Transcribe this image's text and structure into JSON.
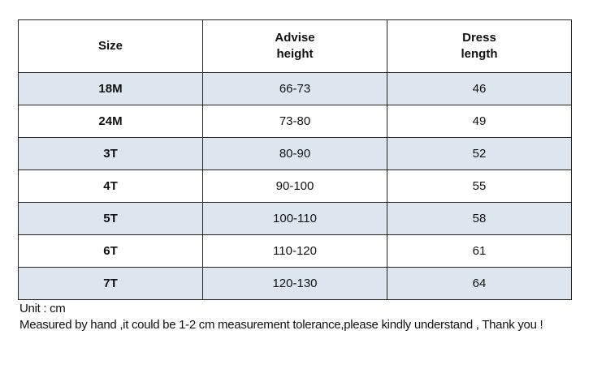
{
  "table": {
    "header": [
      "Size",
      "Advise height",
      "Dress length"
    ],
    "rows": [
      [
        "18M",
        "66-73",
        46
      ],
      [
        "24M",
        "73-80",
        49
      ],
      [
        "3T",
        "80-90",
        52
      ],
      [
        "4T",
        "90-100",
        55
      ],
      [
        "5T",
        "100-110",
        58
      ],
      [
        "6T",
        "110-120",
        61
      ],
      [
        "7T",
        "120-130",
        64
      ]
    ]
  },
  "notes": [
    "Unit : cm",
    "Measured by hand ,it could be 1-2 cm measurement tolerance,please kindly understand , Thank you !"
  ]
}
